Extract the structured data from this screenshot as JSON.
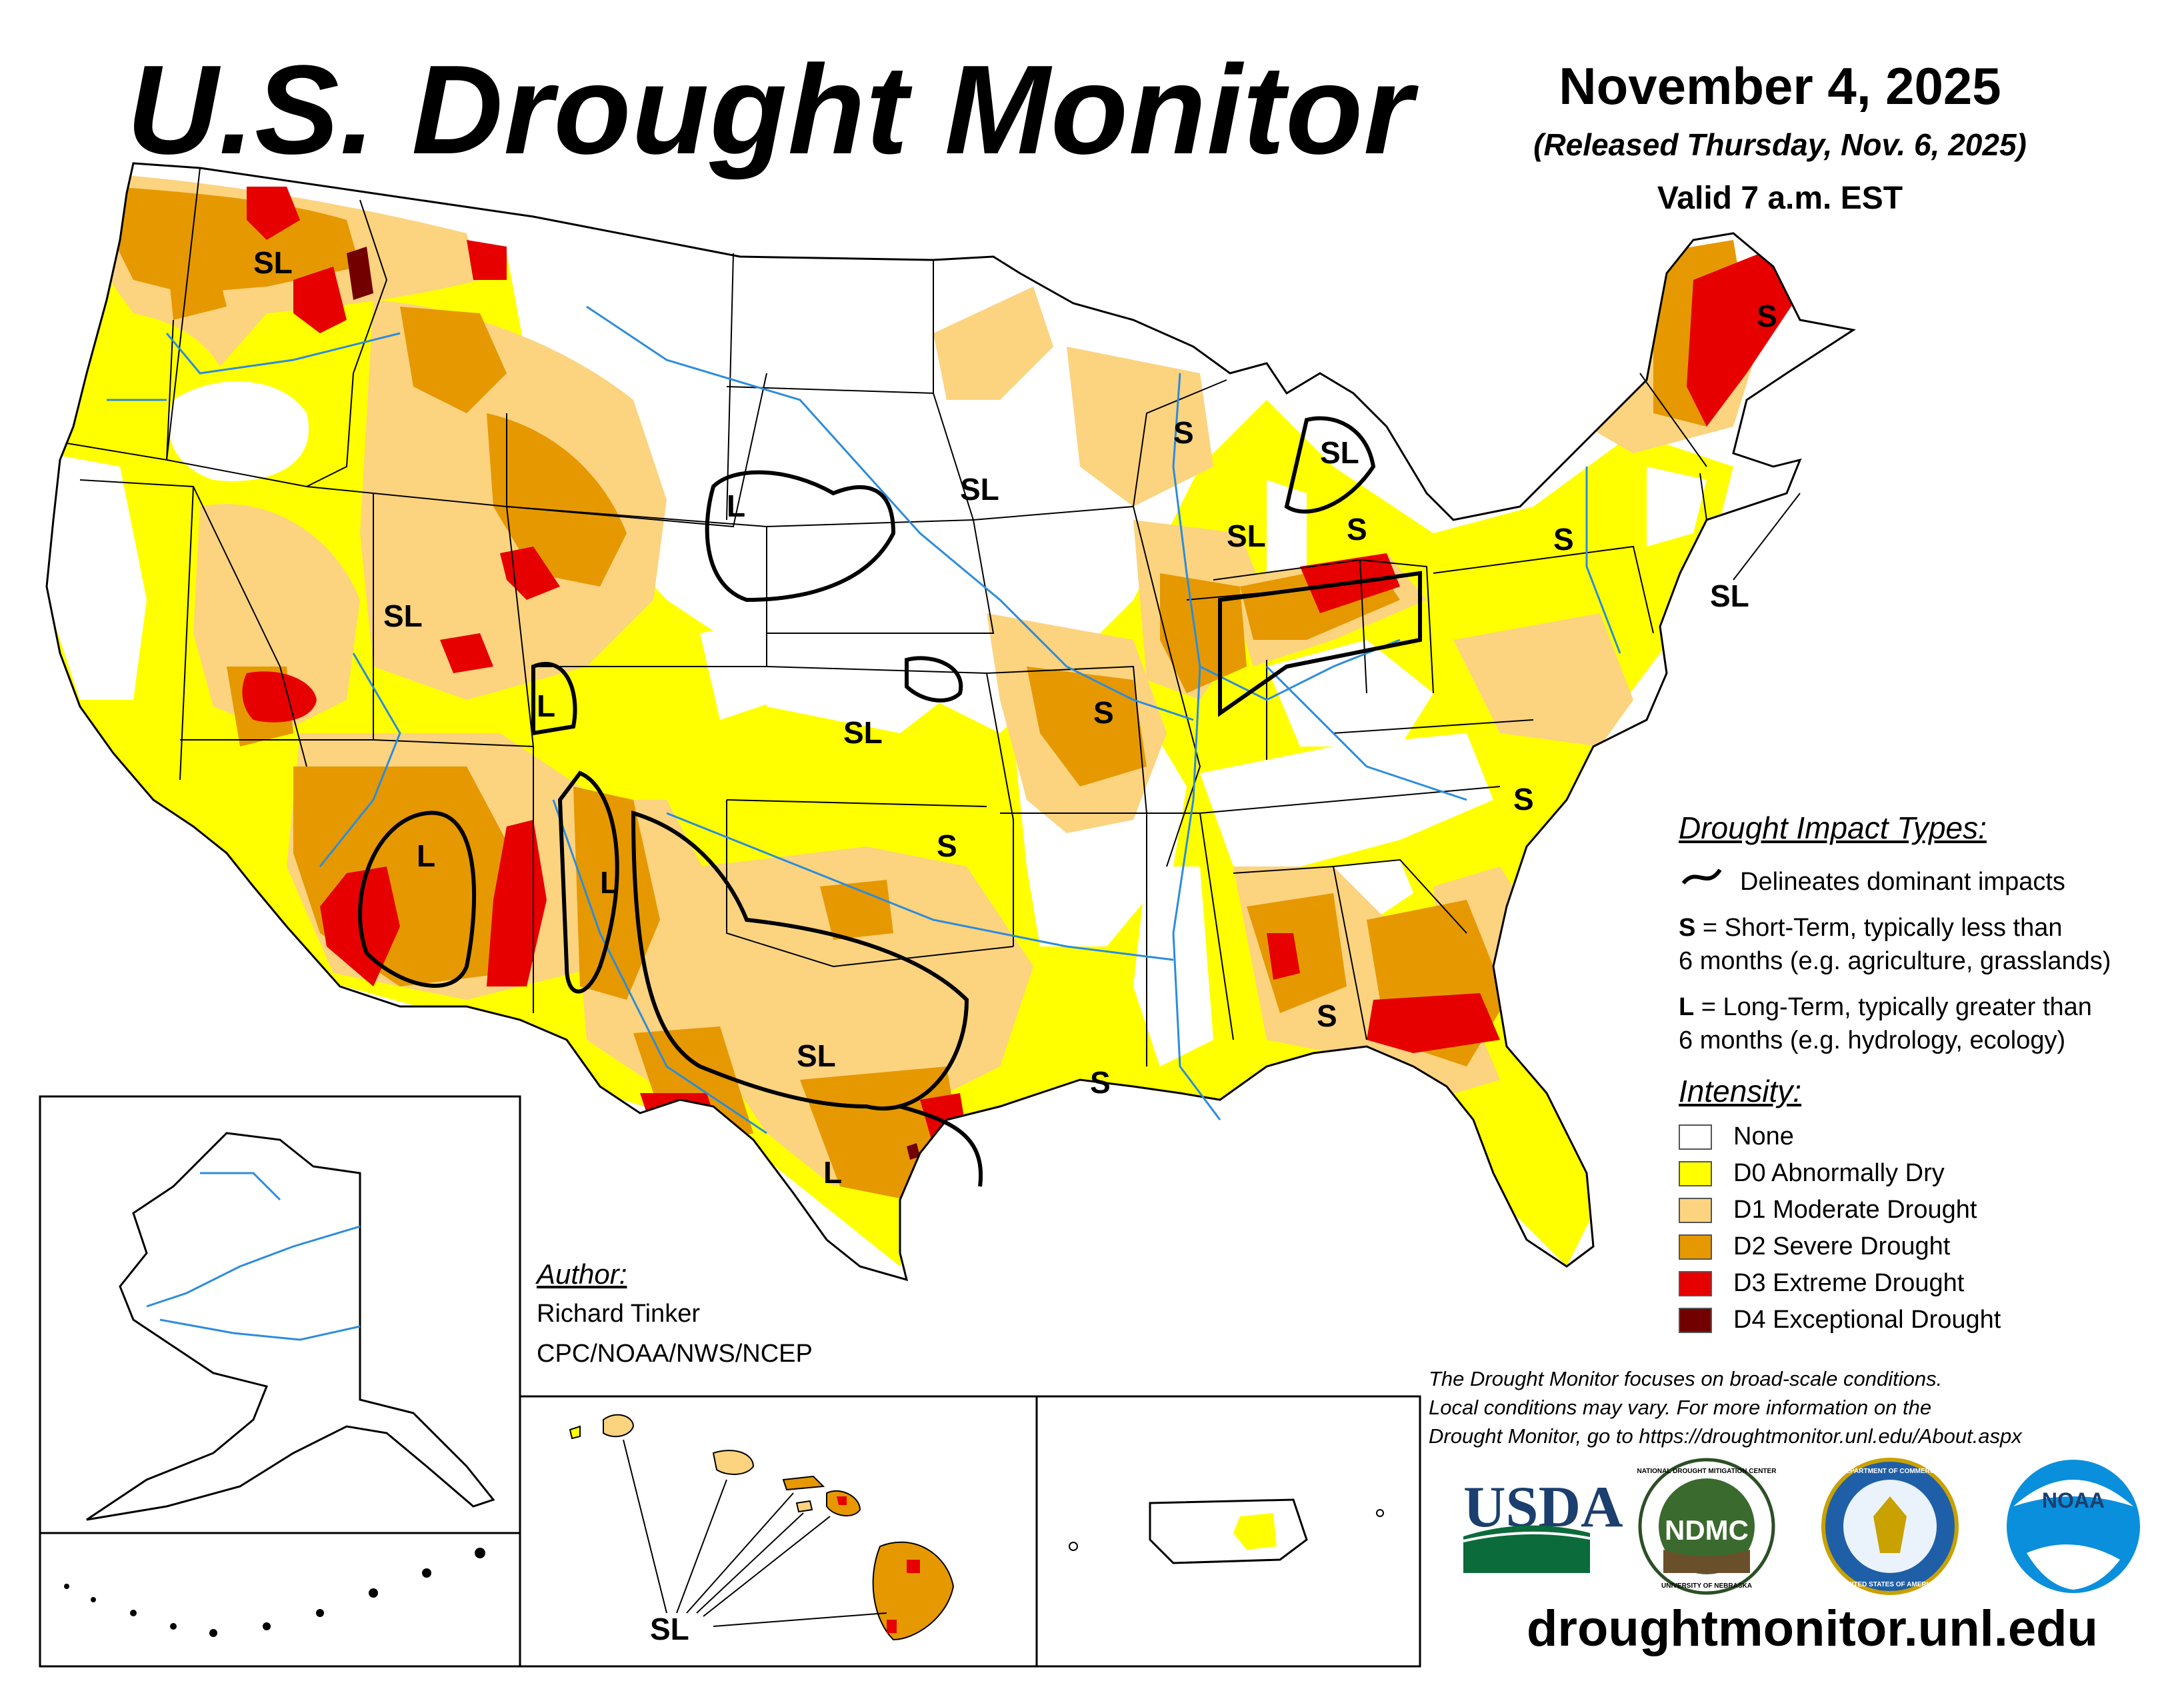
{
  "header": {
    "title": "U.S. Drought Monitor",
    "date": "November 4, 2025",
    "released": "(Released Thursday, Nov. 6, 2025)",
    "valid": "Valid 7 a.m. EST"
  },
  "legend": {
    "impact_heading": "Drought Impact Types:",
    "delineates": "Delineates dominant impacts",
    "s_key": "S",
    "s_desc_1": " = Short-Term, typically less than",
    "s_desc_2": "6 months (e.g. agriculture, grasslands)",
    "l_key": "L",
    "l_desc_1": " = Long-Term, typically greater than",
    "l_desc_2": "6 months (e.g. hydrology, ecology)",
    "intensity_heading": "Intensity:",
    "categories": [
      {
        "label": "None",
        "color": "#ffffff"
      },
      {
        "label": "D0 Abnormally Dry",
        "color": "#ffff00"
      },
      {
        "label": "D1 Moderate Drought",
        "color": "#fcd37f"
      },
      {
        "label": "D2 Severe Drought",
        "color": "#e69800"
      },
      {
        "label": "D3 Extreme Drought",
        "color": "#e60000"
      },
      {
        "label": "D4 Exceptional Drought",
        "color": "#730000"
      }
    ]
  },
  "author": {
    "heading": "Author:",
    "name": "Richard Tinker",
    "org": "CPC/NOAA/NWS/NCEP"
  },
  "disclaimer": {
    "line1": "The Drought Monitor focuses on broad-scale conditions.",
    "line2": "Local conditions may vary. For more information on the",
    "line3": "Drought Monitor, go to https://droughtmonitor.unl.edu/About.aspx"
  },
  "logos": {
    "usda": "USDA",
    "ndmc": "NDMC",
    "ndmc_ring_top": "NATIONAL DROUGHT MITIGATION CENTER",
    "ndmc_ring_bottom": "UNIVERSITY OF NEBRASKA",
    "doc_ring_top": "DEPARTMENT OF COMMERCE",
    "doc_ring_bottom": "UNITED STATES OF AMERICA",
    "noaa": "NOAA"
  },
  "url": "droughtmonitor.unl.edu",
  "map_labels": {
    "sl_pnw": "SL",
    "sl_ut": "SL",
    "l_ne": "L",
    "l_ut": "L",
    "l_az": "L",
    "l_nm": "L",
    "sl_ks": "SL",
    "sl_dak": "SL",
    "sl_tx": "SL",
    "l_tx": "L",
    "s_ok": "S",
    "s_mo": "S",
    "s_la": "S",
    "s_ga": "S",
    "s_nc": "S",
    "s_wi": "S",
    "sl_mi": "SL",
    "sl_ilwi": "SL",
    "s_mi": "S",
    "s_pa": "S",
    "s_me": "S",
    "sl_ne_us": "SL",
    "sl_hi": "SL"
  }
}
